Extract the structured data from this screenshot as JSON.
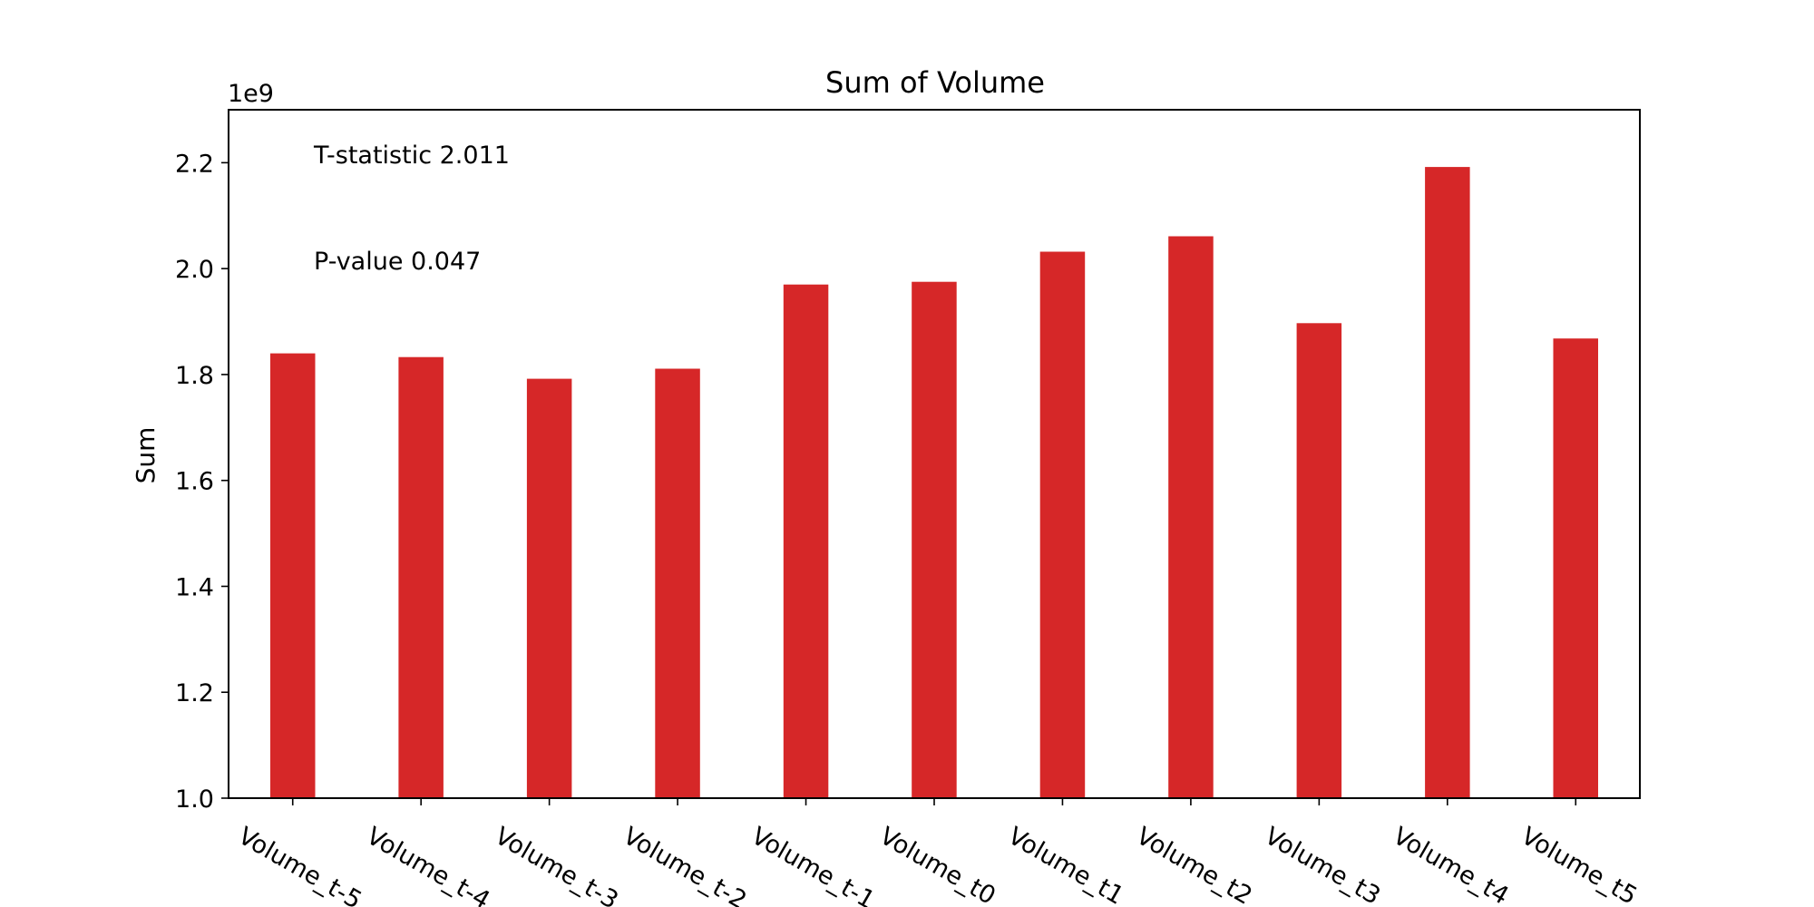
{
  "chart_data": {
    "type": "bar",
    "title": "Sum of Volume",
    "xlabel": "",
    "ylabel": "Sum",
    "y_offset_label": "1e9",
    "ylim": [
      1.0,
      2.3
    ],
    "yticks": [
      "1.0",
      "1.2",
      "1.4",
      "1.6",
      "1.8",
      "2.0",
      "2.2"
    ],
    "ytick_values": [
      1.0,
      1.2,
      1.4,
      1.6,
      1.8,
      2.0,
      2.2
    ],
    "categories": [
      "Volume_t-5",
      "Volume_t-4",
      "Volume_t-3",
      "Volume_t-2",
      "Volume_t-1",
      "Volume_t0",
      "Volume_t1",
      "Volume_t2",
      "Volume_t3",
      "Volume_t4",
      "Volume_t5"
    ],
    "values": [
      1.84,
      1.833,
      1.792,
      1.811,
      1.97,
      1.975,
      2.032,
      2.061,
      1.897,
      2.192,
      1.868
    ],
    "annotations": [
      "T-statistic 2.011",
      "P-value 0.047"
    ],
    "bar_color": "#d62728",
    "grid": false,
    "legend": "none"
  }
}
